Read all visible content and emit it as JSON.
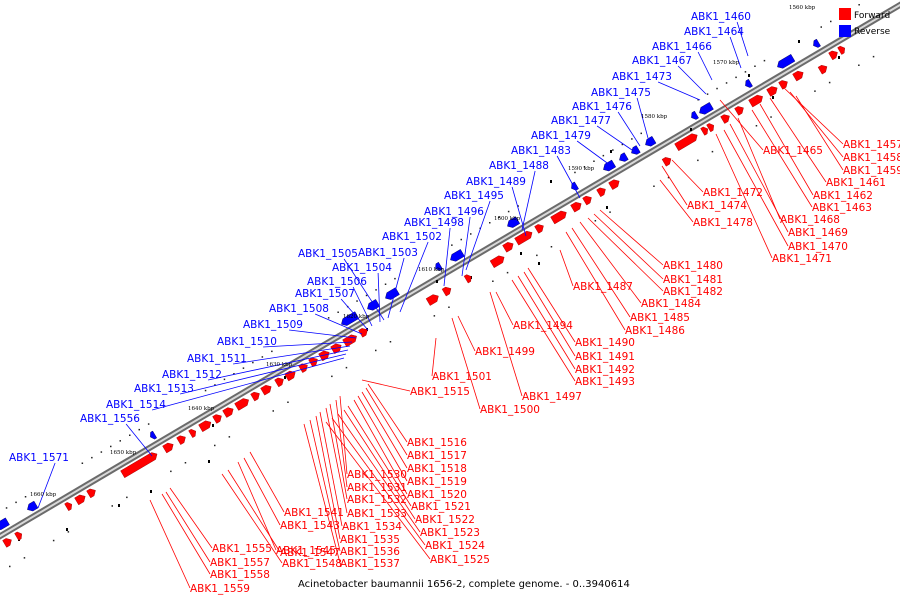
{
  "legend": {
    "forward": {
      "label": "Forward",
      "color": "#ff0000"
    },
    "reverse": {
      "label": "Reverse",
      "color": "#0000ff"
    }
  },
  "caption": "Acinetobacter baumannii 1656-2, complete genome. - 0..3940614",
  "kbp_labels": [
    "1560 kbp",
    "1570 kbp",
    "1580 kbp",
    "1590 kbp",
    "1600 kbp",
    "1610 kbp",
    "1620 kbp",
    "1630 kbp",
    "1640 kbp",
    "1650 kbp",
    "1660 kbp"
  ],
  "reverse_genes": [
    "ABK1_1460",
    "ABK1_1464",
    "ABK1_1466",
    "ABK1_1467",
    "ABK1_1473",
    "ABK1_1475",
    "ABK1_1476",
    "ABK1_1477",
    "ABK1_1479",
    "ABK1_1483",
    "ABK1_1488",
    "ABK1_1489",
    "ABK1_1495",
    "ABK1_1496",
    "ABK1_1498",
    "ABK1_1502",
    "ABK1_1503",
    "ABK1_1505",
    "ABK1_1504",
    "ABK1_1506",
    "ABK1_1507",
    "ABK1_1508",
    "ABK1_1509",
    "ABK1_1510",
    "ABK1_1511",
    "ABK1_1512",
    "ABK1_1513",
    "ABK1_1514",
    "ABK1_1556",
    "ABK1_1571"
  ],
  "forward_genes": [
    "ABK1_1457",
    "ABK1_1458",
    "ABK1_1459",
    "ABK1_1465",
    "ABK1_1461",
    "ABK1_1462",
    "ABK1_1472",
    "ABK1_1463",
    "ABK1_1474",
    "ABK1_1468",
    "ABK1_1478",
    "ABK1_1469",
    "ABK1_1470",
    "ABK1_1471",
    "ABK1_1480",
    "ABK1_1481",
    "ABK1_1487",
    "ABK1_1482",
    "ABK1_1484",
    "ABK1_1485",
    "ABK1_1494",
    "ABK1_1486",
    "ABK1_1490",
    "ABK1_1499",
    "ABK1_1491",
    "ABK1_1492",
    "ABK1_1501",
    "ABK1_1493",
    "ABK1_1515",
    "ABK1_1497",
    "ABK1_1500",
    "ABK1_1516",
    "ABK1_1517",
    "ABK1_1518",
    "ABK1_1530",
    "ABK1_1519",
    "ABK1_1531",
    "ABK1_1520",
    "ABK1_1532",
    "ABK1_1521",
    "ABK1_1541",
    "ABK1_1533",
    "ABK1_1522",
    "ABK1_1543",
    "ABK1_1534",
    "ABK1_1523",
    "ABK1_1545",
    "ABK1_1535",
    "ABK1_1524",
    "ABK1_1555",
    "ABK1_1547",
    "ABK1_1536",
    "ABK1_1525",
    "ABK1_1557",
    "ABK1_1548",
    "ABK1_1537",
    "ABK1_1558",
    "ABK1_1559"
  ]
}
